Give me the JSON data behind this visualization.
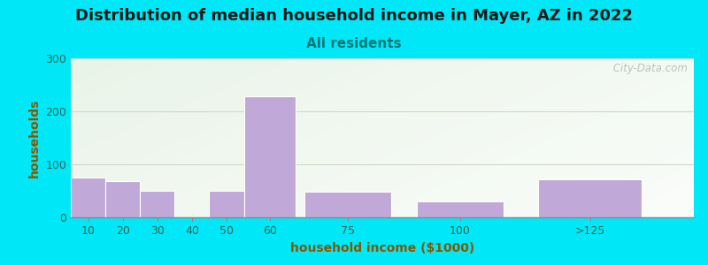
{
  "title": "Distribution of median household income in Mayer, AZ in 2022",
  "subtitle": "All residents",
  "xlabel": "household income ($1000)",
  "ylabel": "households",
  "title_fontsize": 13,
  "subtitle_fontsize": 11,
  "label_fontsize": 10,
  "tick_fontsize": 9,
  "categories": [
    "10",
    "20",
    "30",
    "40",
    "50",
    "60",
    "75",
    "100",
    ">125"
  ],
  "values": [
    75,
    68,
    50,
    0,
    50,
    228,
    48,
    30,
    72
  ],
  "bar_widths": [
    1,
    1,
    1,
    1,
    1,
    1.5,
    2.5,
    2.5,
    3.0
  ],
  "bar_centers": [
    0.5,
    1.5,
    2.5,
    3.5,
    4.5,
    5.75,
    8.0,
    11.25,
    15.0
  ],
  "bar_color": "#c0a8d8",
  "bar_edgecolor": "#ffffff",
  "ylim": [
    0,
    300
  ],
  "yticks": [
    0,
    100,
    200,
    300
  ],
  "background_outer": "#00e8f8",
  "grid_color": "#d0d8c8",
  "title_color": "#1a1a1a",
  "subtitle_color": "#007777",
  "axis_label_color": "#885500",
  "tick_label_color": "#336655",
  "watermark": " City-Data.com"
}
